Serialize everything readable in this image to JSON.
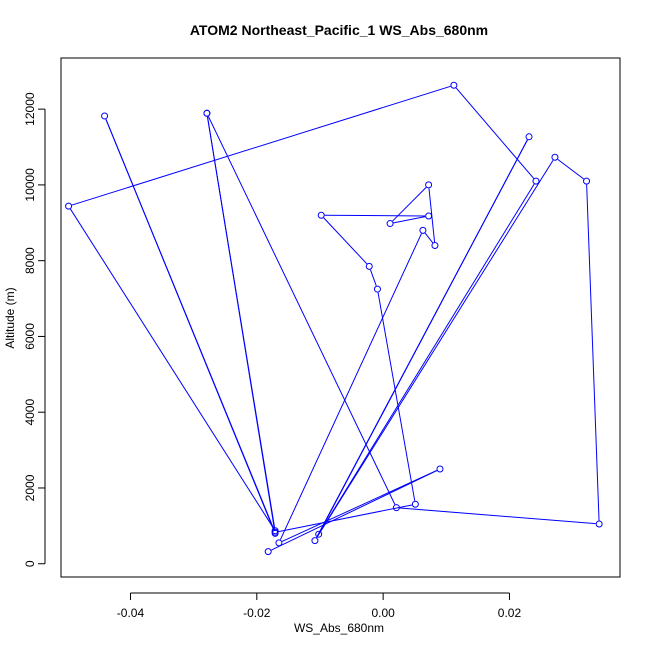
{
  "chart_data": {
    "type": "line",
    "title": "ATOM2 Northeast_Pacific_1 WS_Abs_680nm",
    "xlabel": "WS_Abs_680nm",
    "ylabel": "Altitude (m)",
    "xlim": [
      -0.051,
      0.0375
    ],
    "ylim": [
      -350,
      13350
    ],
    "x_ticks": [
      -0.04,
      -0.02,
      0.0,
      0.02
    ],
    "x_tick_labels": [
      "-0.04",
      "-0.02",
      "0.00",
      "0.02"
    ],
    "y_ticks": [
      0,
      2000,
      4000,
      6000,
      8000,
      10000,
      12000
    ],
    "y_tick_labels": [
      "0",
      "2000",
      "4000",
      "6000",
      "8000",
      "10000",
      "12000"
    ],
    "grid": false,
    "markers": "open-circle",
    "series": [
      {
        "color": "#0000ff",
        "points": [
          {
            "x": -0.0182,
            "y": 320
          },
          {
            "x": 0.009,
            "y": 2500
          },
          {
            "x": -0.0165,
            "y": 550
          },
          {
            "x": 0.0063,
            "y": 8800
          },
          {
            "x": 0.0082,
            "y": 8400
          },
          {
            "x": 0.0072,
            "y": 10000
          },
          {
            "x": 0.0011,
            "y": 8980
          },
          {
            "x": 0.0072,
            "y": 9180
          },
          {
            "x": -0.0098,
            "y": 9200
          },
          {
            "x": -0.0022,
            "y": 7850
          },
          {
            "x": -0.0009,
            "y": 7250
          },
          {
            "x": 0.0051,
            "y": 1570
          },
          {
            "x": -0.0171,
            "y": 830
          },
          {
            "x": -0.0441,
            "y": 11820
          },
          {
            "x": -0.0171,
            "y": 800
          },
          {
            "x": -0.0279,
            "y": 11890
          },
          {
            "x": -0.0171,
            "y": 870
          },
          {
            "x": -0.0498,
            "y": 9440
          },
          {
            "x": 0.0112,
            "y": 12630
          },
          {
            "x": 0.0242,
            "y": 10100
          },
          {
            "x": -0.0102,
            "y": 780
          },
          {
            "x": 0.0231,
            "y": 11270
          },
          {
            "x": -0.0108,
            "y": 610
          },
          {
            "x": 0.0272,
            "y": 10730
          },
          {
            "x": 0.0322,
            "y": 10100
          },
          {
            "x": 0.0342,
            "y": 1050
          },
          {
            "x": 0.0021,
            "y": 1480
          },
          {
            "x": -0.0279,
            "y": 11890
          }
        ]
      }
    ]
  }
}
